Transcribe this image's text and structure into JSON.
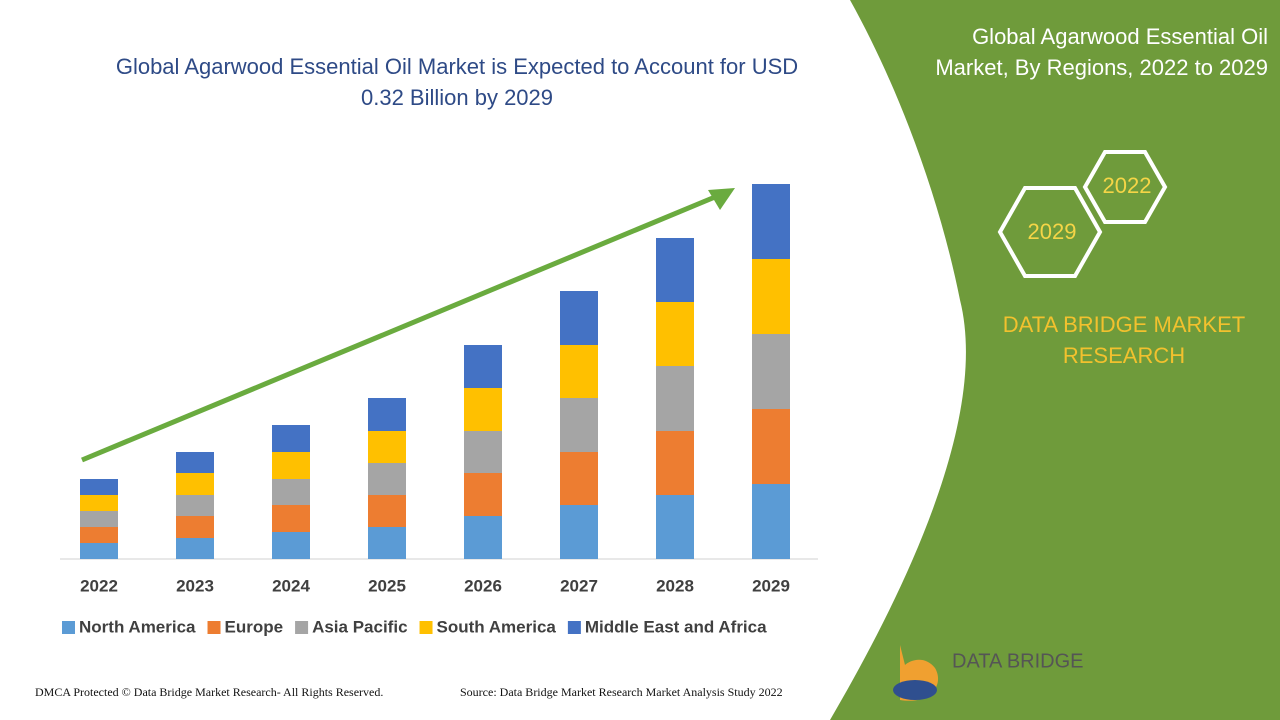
{
  "header": {
    "title_lines": [
      "Global Agarwood Essential Oil Market is Expected to Account for USD",
      "0.32 Billion by 2029"
    ]
  },
  "chart_data": {
    "type": "bar",
    "stacked": true,
    "categories": [
      "2022",
      "2023",
      "2024",
      "2025",
      "2026",
      "2027",
      "2028",
      "2029"
    ],
    "series": [
      {
        "name": "North America",
        "color": "#5b9bd5",
        "values": [
          16,
          21,
          27,
          32,
          43,
          54,
          64,
          75
        ]
      },
      {
        "name": "Europe",
        "color": "#ed7d31",
        "values": [
          16,
          22,
          27,
          32,
          43,
          53,
          64,
          75
        ]
      },
      {
        "name": "Asia Pacific",
        "color": "#a5a5a5",
        "values": [
          16,
          21,
          26,
          32,
          42,
          54,
          65,
          75
        ]
      },
      {
        "name": "South America",
        "color": "#ffc000",
        "values": [
          16,
          22,
          27,
          32,
          43,
          53,
          64,
          75
        ]
      },
      {
        "name": "Middle East and Africa",
        "color": "#4472c4",
        "values": [
          16,
          21,
          27,
          33,
          43,
          54,
          64,
          75
        ]
      }
    ]
  },
  "side_panel": {
    "title_lines": [
      "Global Agarwood Essential Oil",
      "Market, By Regions, 2022 to 2029"
    ],
    "hexagons": [
      "2022",
      "2029"
    ],
    "brand_lines": [
      "DATA BRIDGE MARKET",
      "RESEARCH"
    ]
  },
  "logo": {
    "text": "DATA BRIDGE"
  },
  "footer": {
    "copyright": "DMCA Protected © Data Bridge Market Research- All Rights Reserved.",
    "source": "Source: Data Bridge Market Research Market Analysis Study 2022"
  }
}
